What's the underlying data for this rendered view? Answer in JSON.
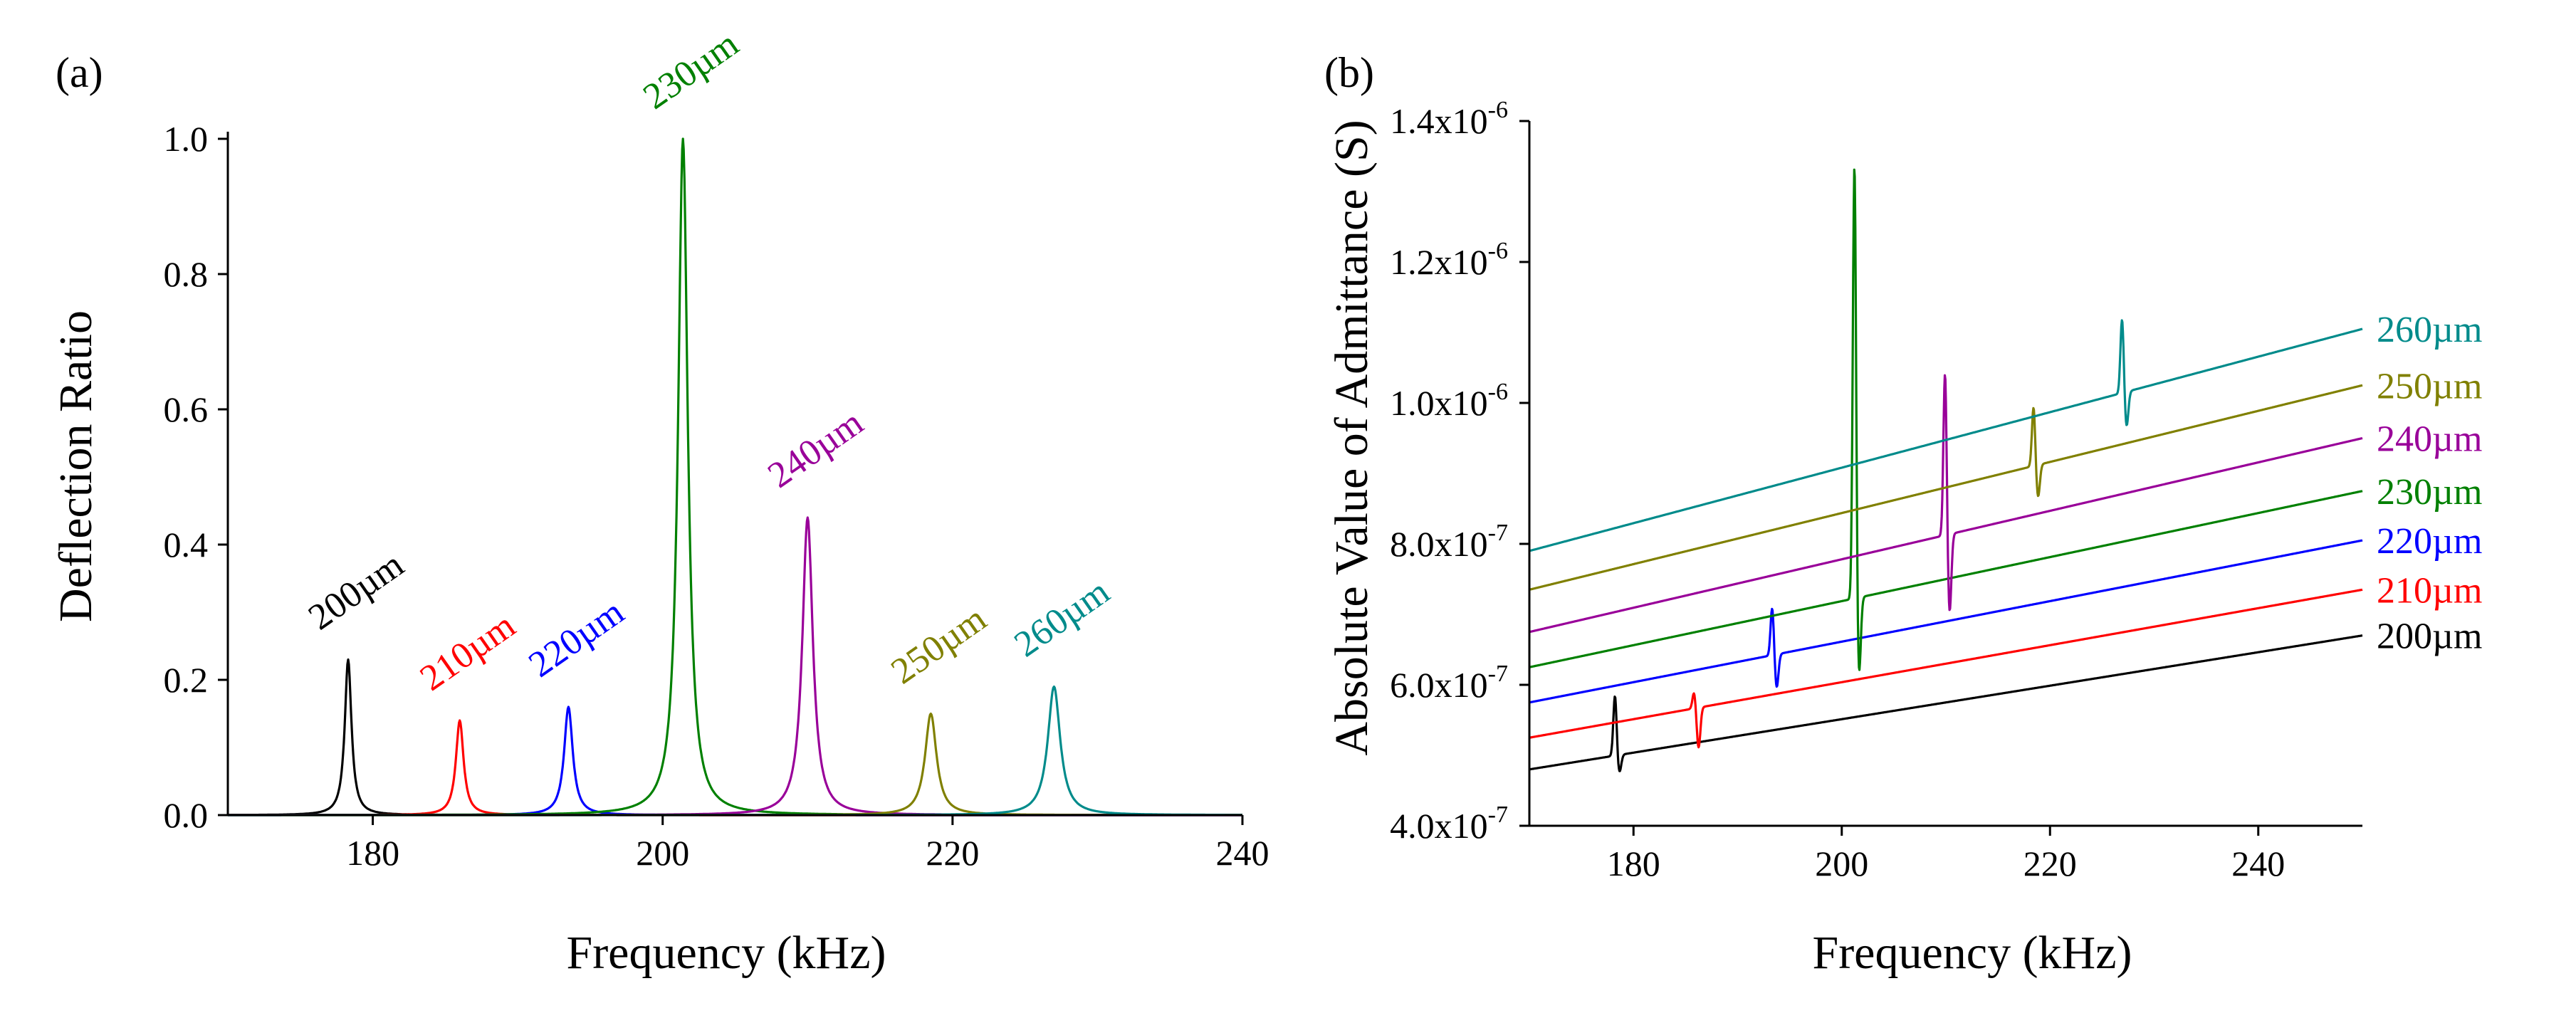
{
  "chart_data": [
    {
      "type": "line",
      "panel_label": "(a)",
      "xlabel": "Frequency (kHz)",
      "ylabel": "Deflection Ratio",
      "xlim": [
        170,
        240
      ],
      "ylim": [
        0.0,
        1.0
      ],
      "xticks": [
        180,
        200,
        220,
        240
      ],
      "xtick_labels": [
        "180",
        "200",
        "220",
        "240"
      ],
      "yticks": [
        0.0,
        0.2,
        0.4,
        0.6,
        0.8,
        1.0
      ],
      "ytick_labels": [
        "0.0",
        "0.2",
        "0.4",
        "0.6",
        "0.8",
        "1.0"
      ],
      "series": [
        {
          "name": "200µm",
          "label": "200µm",
          "color": "#000000",
          "peak_freq": 178.3,
          "peak_value": 0.23
        },
        {
          "name": "210µm",
          "label": "210µm",
          "color": "#ff0000",
          "peak_freq": 186.0,
          "peak_value": 0.14
        },
        {
          "name": "220µm",
          "label": "220µm",
          "color": "#0000ff",
          "peak_freq": 193.5,
          "peak_value": 0.16
        },
        {
          "name": "230µm",
          "label": "230µm",
          "color": "#008000",
          "peak_freq": 201.4,
          "peak_value": 1.0
        },
        {
          "name": "240µm",
          "label": "240µm",
          "color": "#990099",
          "peak_freq": 210.0,
          "peak_value": 0.44
        },
        {
          "name": "250µm",
          "label": "250µm",
          "color": "#808000",
          "peak_freq": 218.5,
          "peak_value": 0.15
        },
        {
          "name": "260µm",
          "label": "260µm",
          "color": "#008b8b",
          "peak_freq": 227.0,
          "peak_value": 0.19
        }
      ]
    },
    {
      "type": "line",
      "panel_label": "(b)",
      "xlabel": "Frequency (kHz)",
      "ylabel": "Absolute Value of Admittance (S)",
      "xlim": [
        170,
        250
      ],
      "ylim": [
        4e-07,
        1.4e-06
      ],
      "xticks": [
        180,
        200,
        220,
        240
      ],
      "xtick_labels": [
        "180",
        "200",
        "220",
        "240"
      ],
      "yticks": [
        4e-07,
        6e-07,
        8e-07,
        1e-06,
        1.2e-06,
        1.4e-06
      ],
      "ytick_labels": [
        {
          "mantissa": "4.0x10",
          "exp": "-7"
        },
        {
          "mantissa": "6.0x10",
          "exp": "-7"
        },
        {
          "mantissa": "8.0x10",
          "exp": "-7"
        },
        {
          "mantissa": "1.0x10",
          "exp": "-6"
        },
        {
          "mantissa": "1.2x10",
          "exp": "-6"
        },
        {
          "mantissa": "1.4x10",
          "exp": "-6"
        }
      ],
      "series": [
        {
          "name": "200µm",
          "label": "200µm",
          "color": "#000000",
          "start": 4.8e-07,
          "end": 6.7e-07,
          "res_freq": 178.3,
          "peak_max": 5.85e-07,
          "peak_min": 4.75e-07
        },
        {
          "name": "210µm",
          "label": "210µm",
          "color": "#ff0000",
          "start": 5.25e-07,
          "end": 7.35e-07,
          "res_freq": 185.9,
          "peak_max": 5.9e-07,
          "peak_min": 5.1e-07
        },
        {
          "name": "220µm",
          "label": "220µm",
          "color": "#0000ff",
          "start": 5.75e-07,
          "end": 8.05e-07,
          "res_freq": 193.4,
          "peak_max": 7.1e-07,
          "peak_min": 5.95e-07
        },
        {
          "name": "230µm",
          "label": "230µm",
          "color": "#008000",
          "start": 6.25e-07,
          "end": 8.75e-07,
          "res_freq": 201.3,
          "peak_max": 1.34e-06,
          "peak_min": 6.1e-07
        },
        {
          "name": "240µm",
          "label": "240µm",
          "color": "#990099",
          "start": 6.75e-07,
          "end": 9.5e-07,
          "res_freq": 210.0,
          "peak_max": 1.045e-06,
          "peak_min": 7e-07
        },
        {
          "name": "250µm",
          "label": "250µm",
          "color": "#808000",
          "start": 7.35e-07,
          "end": 1.025e-06,
          "res_freq": 218.5,
          "peak_max": 9.95e-07,
          "peak_min": 8.65e-07
        },
        {
          "name": "260µm",
          "label": "260µm",
          "color": "#008b8b",
          "start": 7.9e-07,
          "end": 1.105e-06,
          "res_freq": 227.0,
          "peak_max": 1.12e-06,
          "peak_min": 9.65e-07
        }
      ]
    }
  ]
}
